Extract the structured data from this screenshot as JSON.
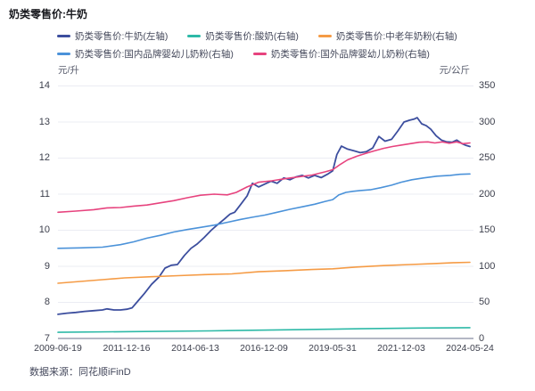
{
  "page": {
    "title": "奶类零售价:牛奶",
    "source": "数据来源：同花顺iFinD"
  },
  "chart_data": {
    "type": "line",
    "title": "奶类零售价:牛奶",
    "grid_on": true,
    "grid_color": "#ebecf3",
    "axis_line_color": "#b4b7c5",
    "legend_position": "top",
    "left_axis": {
      "unit": "元/升",
      "min": 7,
      "max": 14,
      "ticks": [
        14,
        13,
        12,
        11,
        10,
        9,
        8,
        7
      ]
    },
    "right_axis": {
      "unit": "元/公斤",
      "min": 0,
      "max": 350,
      "ticks": [
        350,
        300,
        250,
        200,
        150,
        100,
        50,
        0
      ]
    },
    "x_ticks": [
      "2009-06-19",
      "2011-12-16",
      "2014-06-13",
      "2016-12-09",
      "2019-05-31",
      "2021-12-03",
      "2024-05-24"
    ],
    "series": [
      {
        "name": "奶类零售价:牛奶(左轴)",
        "axis": "left",
        "color": "#3c4e9e",
        "width": 1.8,
        "points": [
          [
            0.0,
            7.67
          ],
          [
            0.022,
            7.7
          ],
          [
            0.043,
            7.72
          ],
          [
            0.065,
            7.75
          ],
          [
            0.087,
            7.77
          ],
          [
            0.108,
            7.79
          ],
          [
            0.119,
            7.82
          ],
          [
            0.136,
            7.79
          ],
          [
            0.152,
            7.79
          ],
          [
            0.167,
            7.81
          ],
          [
            0.18,
            7.85
          ],
          [
            0.195,
            8.05
          ],
          [
            0.21,
            8.25
          ],
          [
            0.227,
            8.5
          ],
          [
            0.245,
            8.7
          ],
          [
            0.26,
            8.95
          ],
          [
            0.275,
            9.03
          ],
          [
            0.29,
            9.05
          ],
          [
            0.307,
            9.3
          ],
          [
            0.323,
            9.5
          ],
          [
            0.338,
            9.62
          ],
          [
            0.355,
            9.8
          ],
          [
            0.372,
            10.0
          ],
          [
            0.387,
            10.15
          ],
          [
            0.403,
            10.3
          ],
          [
            0.418,
            10.45
          ],
          [
            0.429,
            10.5
          ],
          [
            0.444,
            10.72
          ],
          [
            0.459,
            10.95
          ],
          [
            0.472,
            11.3
          ],
          [
            0.487,
            11.2
          ],
          [
            0.502,
            11.28
          ],
          [
            0.517,
            11.36
          ],
          [
            0.532,
            11.3
          ],
          [
            0.548,
            11.45
          ],
          [
            0.563,
            11.4
          ],
          [
            0.578,
            11.48
          ],
          [
            0.593,
            11.52
          ],
          [
            0.608,
            11.45
          ],
          [
            0.623,
            11.52
          ],
          [
            0.639,
            11.46
          ],
          [
            0.654,
            11.55
          ],
          [
            0.667,
            11.65
          ],
          [
            0.677,
            12.1
          ],
          [
            0.688,
            12.33
          ],
          [
            0.703,
            12.25
          ],
          [
            0.719,
            12.2
          ],
          [
            0.734,
            12.15
          ],
          [
            0.749,
            12.18
          ],
          [
            0.764,
            12.28
          ],
          [
            0.779,
            12.6
          ],
          [
            0.794,
            12.47
          ],
          [
            0.81,
            12.52
          ],
          [
            0.825,
            12.75
          ],
          [
            0.84,
            13.0
          ],
          [
            0.853,
            13.05
          ],
          [
            0.864,
            13.08
          ],
          [
            0.872,
            13.12
          ],
          [
            0.883,
            12.95
          ],
          [
            0.894,
            12.9
          ],
          [
            0.905,
            12.8
          ],
          [
            0.918,
            12.62
          ],
          [
            0.931,
            12.5
          ],
          [
            0.944,
            12.45
          ],
          [
            0.957,
            12.44
          ],
          [
            0.968,
            12.5
          ],
          [
            0.981,
            12.4
          ],
          [
            0.991,
            12.35
          ],
          [
            1.0,
            12.32
          ]
        ]
      },
      {
        "name": "奶类零售价:酸奶(右轴)",
        "axis": "right",
        "color": "#2db9a7",
        "width": 1.6,
        "points": [
          [
            0.0,
            8.5
          ],
          [
            0.184,
            9.5
          ],
          [
            0.368,
            10.5
          ],
          [
            0.552,
            12.0
          ],
          [
            0.736,
            13.5
          ],
          [
            0.877,
            14.5
          ],
          [
            1.0,
            15.0
          ]
        ]
      },
      {
        "name": "奶类零售价:中老年奶粉(右轴)",
        "axis": "right",
        "color": "#f59b45",
        "width": 1.6,
        "points": [
          [
            0.0,
            76.5
          ],
          [
            0.054,
            79
          ],
          [
            0.108,
            81.5
          ],
          [
            0.162,
            84
          ],
          [
            0.227,
            85.5
          ],
          [
            0.292,
            87
          ],
          [
            0.357,
            88.5
          ],
          [
            0.422,
            89.5
          ],
          [
            0.487,
            92.5
          ],
          [
            0.552,
            94
          ],
          [
            0.617,
            95.5
          ],
          [
            0.667,
            96.5
          ],
          [
            0.725,
            99
          ],
          [
            0.79,
            101
          ],
          [
            0.855,
            102.5
          ],
          [
            0.92,
            104
          ],
          [
            0.963,
            105
          ],
          [
            1.0,
            105.5
          ]
        ]
      },
      {
        "name": "奶类零售价:国内品牌婴幼儿奶粉(右轴)",
        "axis": "right",
        "color": "#4b92d9",
        "width": 1.6,
        "points": [
          [
            0.0,
            125
          ],
          [
            0.054,
            125.5
          ],
          [
            0.108,
            126.5
          ],
          [
            0.152,
            130
          ],
          [
            0.184,
            134
          ],
          [
            0.216,
            139
          ],
          [
            0.249,
            143
          ],
          [
            0.281,
            147.5
          ],
          [
            0.314,
            151
          ],
          [
            0.346,
            154
          ],
          [
            0.379,
            157
          ],
          [
            0.411,
            161
          ],
          [
            0.444,
            165
          ],
          [
            0.472,
            168
          ],
          [
            0.502,
            171
          ],
          [
            0.532,
            175
          ],
          [
            0.563,
            179
          ],
          [
            0.593,
            182.5
          ],
          [
            0.623,
            186
          ],
          [
            0.649,
            190
          ],
          [
            0.667,
            192.5
          ],
          [
            0.682,
            199
          ],
          [
            0.699,
            202.5
          ],
          [
            0.716,
            204
          ],
          [
            0.734,
            205
          ],
          [
            0.758,
            206
          ],
          [
            0.784,
            209
          ],
          [
            0.81,
            212.5
          ],
          [
            0.833,
            216.5
          ],
          [
            0.859,
            220
          ],
          [
            0.887,
            222.5
          ],
          [
            0.92,
            225
          ],
          [
            0.952,
            226
          ],
          [
            0.976,
            227.5
          ],
          [
            1.0,
            228
          ]
        ]
      },
      {
        "name": "奶类零售价:国外品牌婴幼儿奶粉(右轴)",
        "axis": "right",
        "color": "#e7437e",
        "width": 1.6,
        "points": [
          [
            0.0,
            175
          ],
          [
            0.043,
            176.5
          ],
          [
            0.087,
            178.5
          ],
          [
            0.119,
            181
          ],
          [
            0.152,
            181.5
          ],
          [
            0.184,
            183.5
          ],
          [
            0.216,
            185
          ],
          [
            0.249,
            188
          ],
          [
            0.281,
            191
          ],
          [
            0.314,
            195
          ],
          [
            0.346,
            198.5
          ],
          [
            0.379,
            200
          ],
          [
            0.411,
            199
          ],
          [
            0.433,
            202.5
          ],
          [
            0.459,
            210
          ],
          [
            0.487,
            216.5
          ],
          [
            0.519,
            218.5
          ],
          [
            0.552,
            221.5
          ],
          [
            0.584,
            224
          ],
          [
            0.617,
            226.5
          ],
          [
            0.649,
            231
          ],
          [
            0.667,
            234
          ],
          [
            0.686,
            241.5
          ],
          [
            0.703,
            247.5
          ],
          [
            0.725,
            252.5
          ],
          [
            0.747,
            256.5
          ],
          [
            0.768,
            260
          ],
          [
            0.79,
            263.5
          ],
          [
            0.812,
            266
          ],
          [
            0.833,
            268
          ],
          [
            0.855,
            270
          ],
          [
            0.877,
            272
          ],
          [
            0.898,
            272.5
          ],
          [
            0.915,
            271
          ],
          [
            0.933,
            272.5
          ],
          [
            0.95,
            270.5
          ],
          [
            0.968,
            272.5
          ],
          [
            0.983,
            270
          ],
          [
            1.0,
            271
          ]
        ]
      }
    ]
  }
}
